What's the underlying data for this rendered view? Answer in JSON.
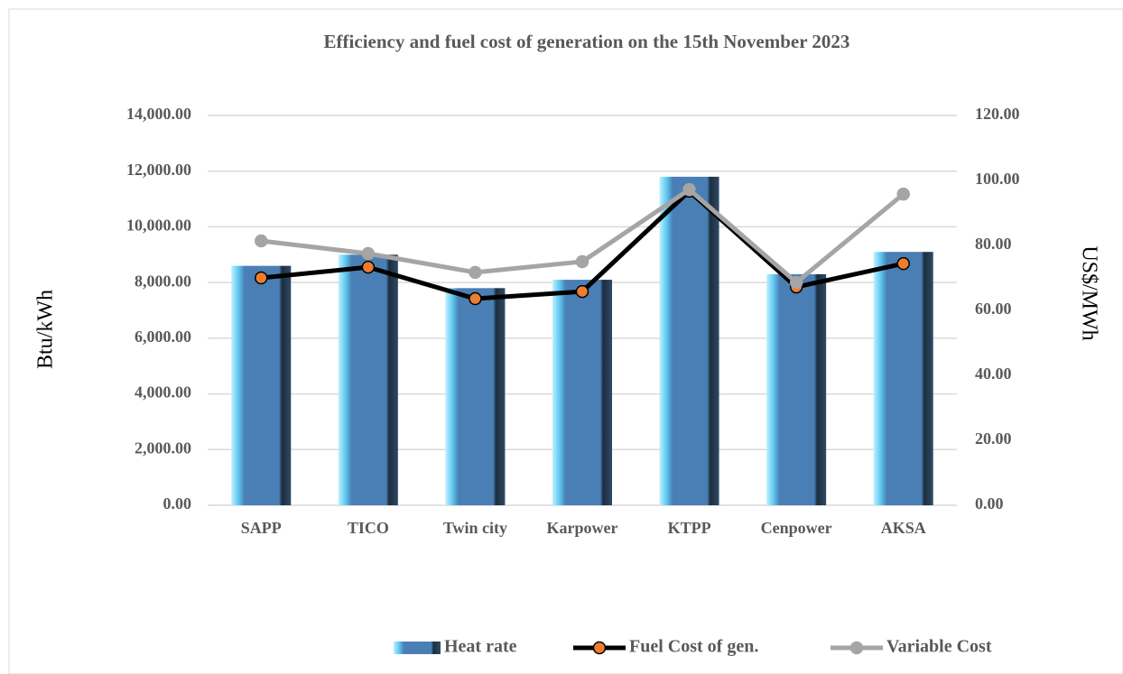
{
  "chart_data": {
    "type": "bar_line",
    "title": "Efficiency and fuel cost of generation on the 15th November 2023",
    "y_label": "Btu/kWh",
    "y2_label": "US$/MWh",
    "categories": [
      "SAPP",
      "TICO",
      "Twin city",
      "Karpower",
      "KTPP",
      "Cenpower",
      "AKSA"
    ],
    "series": [
      {
        "name": "Heat rate",
        "type": "bar",
        "color": "#4a7fb5",
        "values": [
          8600,
          9000,
          7800,
          8100,
          11800,
          8300,
          9100
        ]
      },
      {
        "name": "Fuel Cost of gen.",
        "type": "line",
        "axis": "y2",
        "color": "#000000",
        "marker_color": "#ed7d31",
        "values": [
          70.0,
          73.3,
          63.6,
          65.8,
          96.7,
          67.2,
          74.4
        ]
      },
      {
        "name": "Variable Cost",
        "type": "line",
        "axis": "y2",
        "color": "#a5a5a5",
        "marker_color": "#a5a5a5",
        "values": [
          81.4,
          77.5,
          71.7,
          75.0,
          97.2,
          68.6,
          95.8
        ]
      }
    ],
    "ylim": [
      0,
      14000
    ],
    "yticks": [
      {
        "value": 0,
        "label": "0.00"
      },
      {
        "value": 2000,
        "label": "2,000.00"
      },
      {
        "value": 4000,
        "label": "4,000.00"
      },
      {
        "value": 6000,
        "label": "6,000.00"
      },
      {
        "value": 8000,
        "label": "8,000.00"
      },
      {
        "value": 10000,
        "label": "10,000.00"
      },
      {
        "value": 12000,
        "label": "12,000.00"
      },
      {
        "value": 14000,
        "label": "14,000.00"
      }
    ],
    "y2lim": [
      0,
      120
    ],
    "y2ticks": [
      {
        "value": 0,
        "label": "0.00"
      },
      {
        "value": 20,
        "label": "20.00"
      },
      {
        "value": 40,
        "label": "40.00"
      },
      {
        "value": 60,
        "label": "60.00"
      },
      {
        "value": 80,
        "label": "80.00"
      },
      {
        "value": 100,
        "label": "100.00"
      },
      {
        "value": 120,
        "label": "120.00"
      }
    ],
    "grid": true,
    "legend": "bottom"
  }
}
